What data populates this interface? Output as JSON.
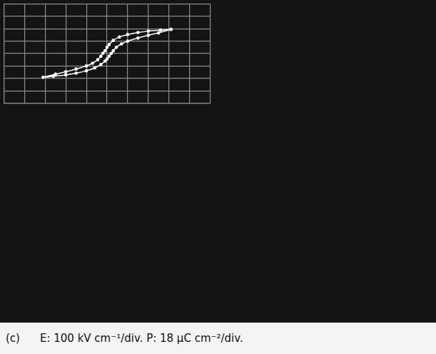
{
  "chart_data": {
    "type": "line",
    "annotations": [
      "(c)",
      "E: 100 kV cm⁻¹/div.  P: 18 μC cm⁻²/div."
    ],
    "x": [
      310,
      260,
      200,
      150,
      100,
      60,
      30,
      10,
      0,
      -10,
      -20,
      -30,
      -45,
      -70,
      -100,
      -150,
      -200,
      -250,
      -310,
      -260,
      -200,
      -150,
      -100,
      -60,
      -30,
      -10,
      0,
      10,
      20,
      30,
      45,
      70,
      100,
      150,
      200,
      250,
      310
    ],
    "values": [
      35,
      34,
      32.5,
      30.5,
      27.5,
      24,
      19,
      13,
      9,
      4,
      0.5,
      -4,
      -9,
      -14,
      -18,
      -22.5,
      -26.5,
      -30,
      -34.5,
      -33,
      -31,
      -28.5,
      -25,
      -21,
      -16,
      -11,
      -8,
      -4,
      0,
      4,
      9,
      14,
      18,
      22.5,
      26.5,
      30,
      35
    ],
    "color": "#ffffff",
    "marker": "circle",
    "line_style": "solid",
    "xlim": [
      -500,
      500
    ],
    "xticks": [
      -500,
      -400,
      -300,
      -200,
      -100,
      0,
      100,
      200,
      300,
      400,
      500
    ],
    "ylim": [
      -72,
      72
    ],
    "yticks": [
      -72,
      -54,
      -36,
      -18,
      0,
      18,
      36,
      54,
      72
    ],
    "grid": true,
    "tick_labels": false
  }
}
